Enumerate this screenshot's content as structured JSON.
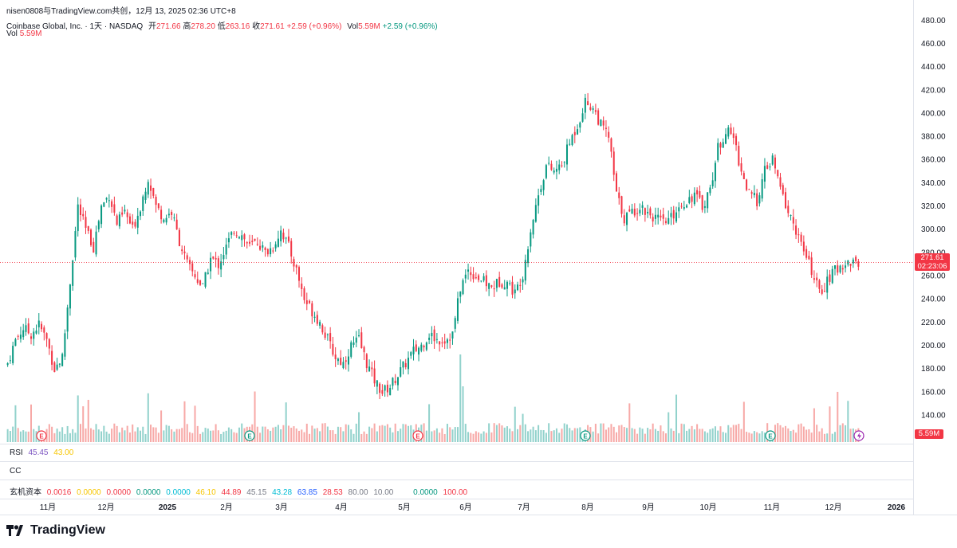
{
  "watermark": "nisen0808与TradingView.com共创，12月 13, 2025 02:36 UTC+8",
  "legend": {
    "symbol": "Coinbase Global, Inc. · 1天 · NASDAQ",
    "open_label": "开",
    "open": "271.66",
    "high_label": "高",
    "high": "278.20",
    "low_label": "低",
    "low": "263.16",
    "close_label": "收",
    "close": "271.61",
    "change": "+2.59 (+0.96%)",
    "vol_label": "Vol",
    "vol": "5.59M",
    "change2": "+2.59 (+0.96%)"
  },
  "vol_pane": {
    "label": "Vol",
    "value": "5.59M"
  },
  "rsi_pane": {
    "label": "RSI",
    "v1": "45.45",
    "v2": "43.00"
  },
  "cc_pane": {
    "label": "CC"
  },
  "xj_pane": {
    "label": "玄机资本",
    "values": [
      "0.0016",
      "0.0000",
      "0.0000",
      "0.0000",
      "0.0000",
      "46.10",
      "44.89",
      "45.15",
      "43.28",
      "63.85",
      "28.53",
      "80.00",
      "10.00",
      "0.0000",
      "100.00"
    ]
  },
  "price_tag": {
    "price": "271.61",
    "countdown": "02:23:06"
  },
  "vol_tag": "5.59M",
  "brand": "TradingView",
  "colors": {
    "up": "#089981",
    "down": "#f23645",
    "up_vol": "#92d2cc",
    "down_vol": "#f7a9a7"
  },
  "chart_data": {
    "type": "candlestick",
    "title": "Coinbase Global, Inc. · 1天 · NASDAQ",
    "y_axis_labels": [
      "480.00",
      "460.00",
      "440.00",
      "420.00",
      "400.00",
      "380.00",
      "360.00",
      "340.00",
      "320.00",
      "300.00",
      "280.00",
      "260.00",
      "240.00",
      "220.00",
      "200.00",
      "180.00",
      "160.00",
      "140.00"
    ],
    "ylim": [
      130,
      484
    ],
    "x_labels": [
      "11月",
      "12月",
      "2025",
      "2月",
      "3月",
      "4月",
      "5月",
      "6月",
      "7月",
      "8月",
      "9月",
      "10月",
      "11月",
      "12月",
      "2026"
    ],
    "current_price": 271.61,
    "close_path": [
      [
        0,
        185
      ],
      [
        3,
        205
      ],
      [
        6,
        215
      ],
      [
        9,
        210
      ],
      [
        12,
        218
      ],
      [
        15,
        205
      ],
      [
        18,
        180
      ],
      [
        21,
        190
      ],
      [
        24,
        255
      ],
      [
        27,
        320
      ],
      [
        30,
        300
      ],
      [
        33,
        285
      ],
      [
        36,
        320
      ],
      [
        39,
        330
      ],
      [
        42,
        305
      ],
      [
        45,
        315
      ],
      [
        48,
        300
      ],
      [
        51,
        320
      ],
      [
        54,
        345
      ],
      [
        57,
        320
      ],
      [
        60,
        310
      ],
      [
        63,
        315
      ],
      [
        66,
        290
      ],
      [
        69,
        270
      ],
      [
        72,
        260
      ],
      [
        75,
        250
      ],
      [
        78,
        275
      ],
      [
        81,
        270
      ],
      [
        84,
        285
      ],
      [
        87,
        300
      ],
      [
        90,
        295
      ],
      [
        93,
        285
      ],
      [
        96,
        290
      ],
      [
        99,
        280
      ],
      [
        102,
        285
      ],
      [
        105,
        300
      ],
      [
        108,
        285
      ],
      [
        111,
        265
      ],
      [
        114,
        240
      ],
      [
        117,
        230
      ],
      [
        120,
        220
      ],
      [
        123,
        205
      ],
      [
        126,
        190
      ],
      [
        129,
        185
      ],
      [
        132,
        200
      ],
      [
        135,
        205
      ],
      [
        138,
        185
      ],
      [
        141,
        170
      ],
      [
        144,
        160
      ],
      [
        147,
        165
      ],
      [
        150,
        175
      ],
      [
        153,
        185
      ],
      [
        156,
        195
      ],
      [
        159,
        200
      ],
      [
        162,
        210
      ],
      [
        165,
        205
      ],
      [
        168,
        205
      ],
      [
        171,
        210
      ],
      [
        174,
        250
      ],
      [
        177,
        265
      ],
      [
        180,
        260
      ],
      [
        183,
        255
      ],
      [
        186,
        250
      ],
      [
        189,
        255
      ],
      [
        192,
        255
      ],
      [
        195,
        245
      ],
      [
        198,
        262
      ],
      [
        201,
        300
      ],
      [
        204,
        330
      ],
      [
        207,
        355
      ],
      [
        210,
        350
      ],
      [
        213,
        355
      ],
      [
        216,
        375
      ],
      [
        219,
        390
      ],
      [
        222,
        410
      ],
      [
        225,
        405
      ],
      [
        228,
        390
      ],
      [
        231,
        380
      ],
      [
        234,
        330
      ],
      [
        237,
        310
      ],
      [
        240,
        315
      ],
      [
        243,
        320
      ],
      [
        246,
        315
      ],
      [
        249,
        310
      ],
      [
        252,
        305
      ],
      [
        255,
        310
      ],
      [
        258,
        320
      ],
      [
        261,
        325
      ],
      [
        264,
        330
      ],
      [
        267,
        320
      ],
      [
        270,
        335
      ],
      [
        273,
        370
      ],
      [
        276,
        385
      ],
      [
        279,
        380
      ],
      [
        282,
        350
      ],
      [
        285,
        330
      ],
      [
        288,
        325
      ],
      [
        291,
        350
      ],
      [
        294,
        360
      ],
      [
        297,
        335
      ],
      [
        300,
        315
      ],
      [
        303,
        300
      ],
      [
        306,
        280
      ],
      [
        309,
        265
      ],
      [
        312,
        245
      ],
      [
        315,
        255
      ],
      [
        318,
        265
      ],
      [
        321,
        270
      ],
      [
        324,
        272
      ],
      [
        327,
        271.61
      ]
    ],
    "volume_note": "daily volume bars; last 5.59M",
    "indicators": {
      "RSI": [
        45.45,
        43.0
      ]
    }
  }
}
